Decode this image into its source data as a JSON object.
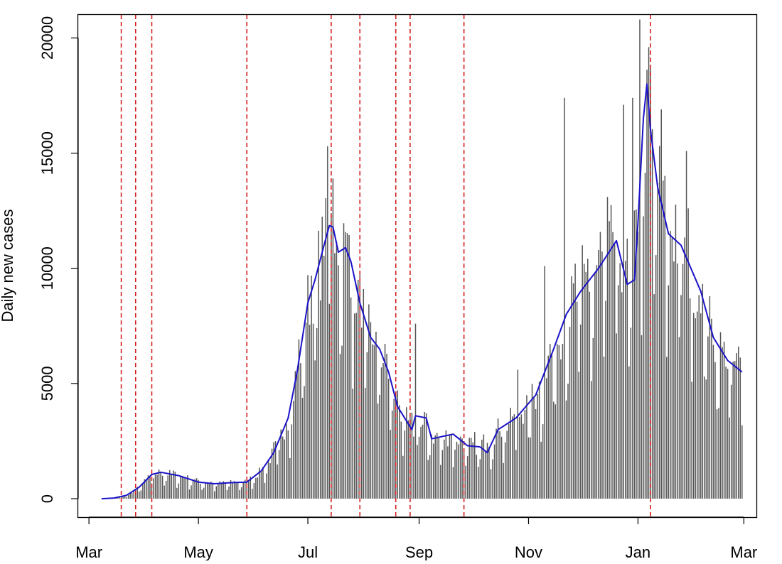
{
  "chart_data": {
    "type": "bar",
    "title": "",
    "xlabel": "",
    "ylabel": "Daily new cases",
    "ylim": [
      -800,
      21000
    ],
    "xlim": [
      "2020-02-24",
      "2021-03-08"
    ],
    "grid": false,
    "legend": "none",
    "colors": {
      "bars": "#555555",
      "line": "#1a12c7",
      "events": "#d42020",
      "axes": "#000000"
    },
    "x_ticks": [
      {
        "date": "2020-03-01",
        "label": "Mar"
      },
      {
        "date": "2020-05-01",
        "label": "May"
      },
      {
        "date": "2020-07-01",
        "label": "Jul"
      },
      {
        "date": "2020-09-01",
        "label": "Sep"
      },
      {
        "date": "2020-11-01",
        "label": "Nov"
      },
      {
        "date": "2021-01-01",
        "label": "Jan"
      },
      {
        "date": "2021-03-01",
        "label": "Mar"
      }
    ],
    "y_ticks": [
      0,
      5000,
      10000,
      15000,
      20000
    ],
    "y_tick_labels": [
      "0",
      "5000",
      "10000",
      "15000",
      "20000"
    ],
    "event_dates": [
      "2020-03-19",
      "2020-03-27",
      "2020-04-05",
      "2020-05-28",
      "2020-07-14",
      "2020-07-30",
      "2020-08-19",
      "2020-08-27",
      "2020-09-26",
      "2021-01-08"
    ],
    "series": [
      {
        "kind": "bar",
        "start_date": "2020-03-08",
        "end_date": "2021-02-28",
        "anchors": [
          [
            "2020-03-08",
            0
          ],
          [
            "2020-03-15",
            30
          ],
          [
            "2020-03-22",
            150
          ],
          [
            "2020-03-29",
            500
          ],
          [
            "2020-04-05",
            1050
          ],
          [
            "2020-04-10",
            1150
          ],
          [
            "2020-04-20",
            1000
          ],
          [
            "2020-05-01",
            750
          ],
          [
            "2020-05-10",
            650
          ],
          [
            "2020-05-20",
            700
          ],
          [
            "2020-05-28",
            750
          ],
          [
            "2020-06-05",
            1200
          ],
          [
            "2020-06-12",
            2000
          ],
          [
            "2020-06-20",
            3500
          ],
          [
            "2020-06-25",
            5500
          ],
          [
            "2020-07-01",
            8500
          ],
          [
            "2020-07-05",
            9500
          ],
          [
            "2020-07-10",
            11000
          ],
          [
            "2020-07-15",
            11800
          ],
          [
            "2020-07-20",
            11000
          ],
          [
            "2020-07-25",
            10500
          ],
          [
            "2020-07-30",
            8500
          ],
          [
            "2020-08-05",
            7000
          ],
          [
            "2020-08-10",
            6500
          ],
          [
            "2020-08-15",
            5500
          ],
          [
            "2020-08-20",
            4000
          ],
          [
            "2020-08-28",
            3000
          ],
          [
            "2020-09-05",
            3200
          ],
          [
            "2020-09-10",
            2600
          ],
          [
            "2020-09-20",
            2800
          ],
          [
            "2020-09-28",
            2300
          ],
          [
            "2020-10-05",
            2300
          ],
          [
            "2020-10-15",
            3000
          ],
          [
            "2020-10-25",
            3500
          ],
          [
            "2020-11-05",
            4500
          ],
          [
            "2020-11-15",
            6500
          ],
          [
            "2020-11-22",
            8000
          ],
          [
            "2020-11-30",
            9000
          ],
          [
            "2020-12-10",
            10000
          ],
          [
            "2020-12-20",
            11200
          ],
          [
            "2020-12-28",
            9500
          ],
          [
            "2021-01-01",
            12000
          ],
          [
            "2021-01-05",
            16500
          ],
          [
            "2021-01-10",
            15000
          ],
          [
            "2021-01-15",
            12500
          ],
          [
            "2021-01-25",
            11000
          ],
          [
            "2021-02-05",
            9000
          ],
          [
            "2021-02-12",
            7000
          ],
          [
            "2021-02-20",
            6000
          ],
          [
            "2021-02-28",
            5600
          ]
        ],
        "spikes": [
          [
            "2020-07-12",
            15300
          ],
          [
            "2020-07-15",
            13900
          ],
          [
            "2020-08-20",
            4700
          ],
          [
            "2020-08-30",
            7600
          ],
          [
            "2020-10-26",
            5600
          ],
          [
            "2020-11-10",
            10100
          ],
          [
            "2020-11-21",
            17400
          ],
          [
            "2020-12-01",
            11000
          ],
          [
            "2020-12-15",
            13100
          ],
          [
            "2020-12-24",
            17100
          ],
          [
            "2020-12-29",
            17400
          ],
          [
            "2021-01-02",
            20800
          ],
          [
            "2021-01-07",
            19600
          ],
          [
            "2021-01-14",
            16900
          ],
          [
            "2021-01-28",
            15100
          ]
        ]
      },
      {
        "kind": "line",
        "points": [
          [
            "2020-03-08",
            0
          ],
          [
            "2020-03-15",
            30
          ],
          [
            "2020-03-22",
            150
          ],
          [
            "2020-03-29",
            500
          ],
          [
            "2020-04-05",
            1050
          ],
          [
            "2020-04-10",
            1150
          ],
          [
            "2020-04-20",
            1000
          ],
          [
            "2020-05-01",
            720
          ],
          [
            "2020-05-10",
            650
          ],
          [
            "2020-05-20",
            700
          ],
          [
            "2020-05-28",
            720
          ],
          [
            "2020-06-05",
            1200
          ],
          [
            "2020-06-12",
            2000
          ],
          [
            "2020-06-20",
            3500
          ],
          [
            "2020-06-25",
            5500
          ],
          [
            "2020-07-01",
            8500
          ],
          [
            "2020-07-05",
            9500
          ],
          [
            "2020-07-10",
            11000
          ],
          [
            "2020-07-13",
            11850
          ],
          [
            "2020-07-15",
            11800
          ],
          [
            "2020-07-18",
            10700
          ],
          [
            "2020-07-22",
            10900
          ],
          [
            "2020-07-25",
            10300
          ],
          [
            "2020-07-30",
            8500
          ],
          [
            "2020-08-05",
            7000
          ],
          [
            "2020-08-10",
            6500
          ],
          [
            "2020-08-15",
            5500
          ],
          [
            "2020-08-20",
            4000
          ],
          [
            "2020-08-28",
            3000
          ],
          [
            "2020-08-30",
            3600
          ],
          [
            "2020-09-05",
            3500
          ],
          [
            "2020-09-08",
            2600
          ],
          [
            "2020-09-20",
            2800
          ],
          [
            "2020-09-28",
            2300
          ],
          [
            "2020-10-05",
            2250
          ],
          [
            "2020-10-09",
            2000
          ],
          [
            "2020-10-15",
            3000
          ],
          [
            "2020-10-25",
            3500
          ],
          [
            "2020-11-05",
            4500
          ],
          [
            "2020-11-15",
            6500
          ],
          [
            "2020-11-22",
            8000
          ],
          [
            "2020-11-30",
            9000
          ],
          [
            "2020-12-10",
            10000
          ],
          [
            "2020-12-20",
            11200
          ],
          [
            "2020-12-26",
            9300
          ],
          [
            "2020-12-30",
            9500
          ],
          [
            "2021-01-01",
            12000
          ],
          [
            "2021-01-04",
            16500
          ],
          [
            "2021-01-06",
            18000
          ],
          [
            "2021-01-08",
            16000
          ],
          [
            "2021-01-12",
            13500
          ],
          [
            "2021-01-18",
            11500
          ],
          [
            "2021-01-25",
            11000
          ],
          [
            "2021-02-05",
            9000
          ],
          [
            "2021-02-12",
            7000
          ],
          [
            "2021-02-20",
            6000
          ],
          [
            "2021-02-28",
            5500
          ]
        ]
      }
    ]
  }
}
